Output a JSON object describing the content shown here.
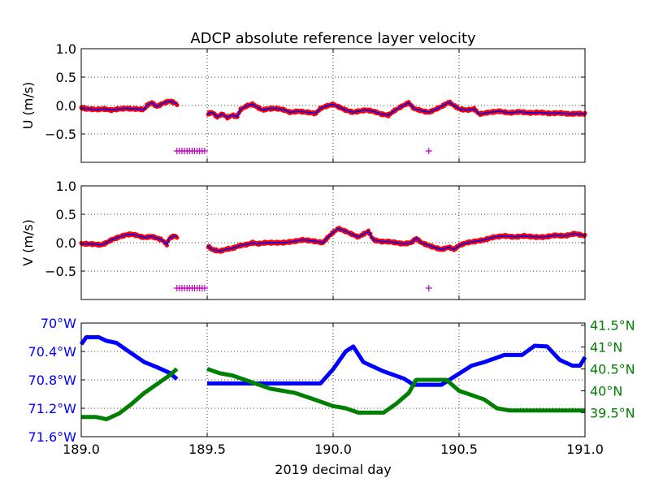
{
  "figure_title": "ADCP absolute reference layer velocity",
  "colors": {
    "red": "#ff0000",
    "blue": "#0000ff",
    "green": "#008000",
    "magenta": "#bf00bf",
    "grid": "#000000"
  },
  "chart_data": [
    {
      "type": "scatter",
      "panel": "u",
      "title": "ADCP absolute reference layer velocity",
      "xlabel": "",
      "ylabel": "U (m/s)",
      "xlim": [
        189.0,
        191.0
      ],
      "ylim": [
        -1.0,
        1.0
      ],
      "xticks": [
        189.0,
        189.5,
        190.0,
        190.5,
        191.0
      ],
      "yticks": [
        1.0,
        0.5,
        0.0,
        -0.5
      ],
      "ytick_labels": [
        "1.0",
        "0.5",
        "0.0",
        "−0.5"
      ],
      "grid": true,
      "gaps": [
        [
          189.38,
          189.5
        ]
      ],
      "series_points": [
        [
          189.0,
          -0.05
        ],
        [
          189.03,
          -0.06
        ],
        [
          189.06,
          -0.07
        ],
        [
          189.09,
          -0.06
        ],
        [
          189.12,
          -0.08
        ],
        [
          189.15,
          -0.06
        ],
        [
          189.18,
          -0.05
        ],
        [
          189.2,
          -0.06
        ],
        [
          189.22,
          -0.06
        ],
        [
          189.25,
          -0.07
        ],
        [
          189.26,
          0.0
        ],
        [
          189.28,
          0.05
        ],
        [
          189.3,
          -0.02
        ],
        [
          189.32,
          0.03
        ],
        [
          189.35,
          0.08
        ],
        [
          189.37,
          0.05
        ],
        [
          189.38,
          0.02
        ],
        [
          189.5,
          -0.15
        ],
        [
          189.52,
          -0.12
        ],
        [
          189.54,
          -0.2
        ],
        [
          189.56,
          -0.15
        ],
        [
          189.58,
          -0.21
        ],
        [
          189.6,
          -0.17
        ],
        [
          189.62,
          -0.2
        ],
        [
          189.63,
          -0.08
        ],
        [
          189.64,
          -0.05
        ],
        [
          189.66,
          0.0
        ],
        [
          189.68,
          0.02
        ],
        [
          189.7,
          -0.03
        ],
        [
          189.72,
          -0.08
        ],
        [
          189.74,
          -0.06
        ],
        [
          189.77,
          -0.05
        ],
        [
          189.8,
          -0.07
        ],
        [
          189.83,
          -0.12
        ],
        [
          189.86,
          -0.1
        ],
        [
          189.9,
          -0.12
        ],
        [
          189.93,
          -0.14
        ],
        [
          189.95,
          -0.05
        ],
        [
          189.98,
          0.0
        ],
        [
          190.0,
          0.02
        ],
        [
          190.02,
          -0.02
        ],
        [
          190.05,
          -0.08
        ],
        [
          190.08,
          -0.12
        ],
        [
          190.1,
          -0.1
        ],
        [
          190.13,
          -0.08
        ],
        [
          190.16,
          -0.1
        ],
        [
          190.19,
          -0.15
        ],
        [
          190.22,
          -0.17
        ],
        [
          190.24,
          -0.1
        ],
        [
          190.27,
          -0.02
        ],
        [
          190.3,
          0.05
        ],
        [
          190.32,
          -0.05
        ],
        [
          190.35,
          -0.09
        ],
        [
          190.38,
          -0.12
        ],
        [
          190.4,
          -0.08
        ],
        [
          190.43,
          -0.02
        ],
        [
          190.46,
          0.06
        ],
        [
          190.48,
          0.0
        ],
        [
          190.5,
          -0.06
        ],
        [
          190.53,
          -0.08
        ],
        [
          190.56,
          -0.06
        ],
        [
          190.58,
          -0.15
        ],
        [
          190.62,
          -0.12
        ],
        [
          190.66,
          -0.1
        ],
        [
          190.7,
          -0.13
        ],
        [
          190.74,
          -0.11
        ],
        [
          190.78,
          -0.13
        ],
        [
          190.82,
          -0.12
        ],
        [
          190.86,
          -0.14
        ],
        [
          190.9,
          -0.13
        ],
        [
          190.94,
          -0.15
        ],
        [
          190.97,
          -0.14
        ],
        [
          191.0,
          -0.15
        ]
      ],
      "flags": [
        [
          189.38,
          -0.8
        ],
        [
          189.39,
          -0.8
        ],
        [
          189.4,
          -0.8
        ],
        [
          189.41,
          -0.8
        ],
        [
          189.42,
          -0.8
        ],
        [
          189.43,
          -0.8
        ],
        [
          189.44,
          -0.8
        ],
        [
          189.45,
          -0.8
        ],
        [
          189.46,
          -0.8
        ],
        [
          189.47,
          -0.8
        ],
        [
          189.48,
          -0.8
        ],
        [
          189.49,
          -0.8
        ],
        [
          190.38,
          -0.8
        ]
      ]
    },
    {
      "type": "scatter",
      "panel": "v",
      "title": "",
      "xlabel": "",
      "ylabel": "V (m/s)",
      "xlim": [
        189.0,
        191.0
      ],
      "ylim": [
        -1.0,
        1.0
      ],
      "xticks": [
        189.0,
        189.5,
        190.0,
        190.5,
        191.0
      ],
      "yticks": [
        1.0,
        0.5,
        0.0,
        -0.5
      ],
      "ytick_labels": [
        "1.0",
        "0.5",
        "0.0",
        "−0.5"
      ],
      "grid": true,
      "gaps": [
        [
          189.38,
          189.5
        ]
      ],
      "series_points": [
        [
          189.0,
          -0.02
        ],
        [
          189.03,
          -0.02
        ],
        [
          189.06,
          -0.03
        ],
        [
          189.08,
          -0.04
        ],
        [
          189.1,
          0.0
        ],
        [
          189.12,
          0.05
        ],
        [
          189.15,
          0.1
        ],
        [
          189.18,
          0.14
        ],
        [
          189.2,
          0.15
        ],
        [
          189.22,
          0.13
        ],
        [
          189.25,
          0.09
        ],
        [
          189.28,
          0.11
        ],
        [
          189.3,
          0.08
        ],
        [
          189.32,
          0.05
        ],
        [
          189.34,
          -0.03
        ],
        [
          189.35,
          0.08
        ],
        [
          189.37,
          0.12
        ],
        [
          189.38,
          0.1
        ],
        [
          189.5,
          -0.05
        ],
        [
          189.52,
          -0.12
        ],
        [
          189.55,
          -0.15
        ],
        [
          189.58,
          -0.11
        ],
        [
          189.6,
          -0.1
        ],
        [
          189.63,
          -0.05
        ],
        [
          189.66,
          -0.03
        ],
        [
          189.68,
          0.0
        ],
        [
          189.7,
          -0.02
        ],
        [
          189.73,
          0.0
        ],
        [
          189.76,
          0.0
        ],
        [
          189.8,
          0.0
        ],
        [
          189.84,
          0.02
        ],
        [
          189.88,
          0.05
        ],
        [
          189.92,
          0.03
        ],
        [
          189.96,
          0.0
        ],
        [
          189.98,
          0.1
        ],
        [
          190.0,
          0.18
        ],
        [
          190.02,
          0.25
        ],
        [
          190.05,
          0.2
        ],
        [
          190.08,
          0.14
        ],
        [
          190.1,
          0.1
        ],
        [
          190.12,
          0.15
        ],
        [
          190.14,
          0.2
        ],
        [
          190.16,
          0.05
        ],
        [
          190.19,
          0.02
        ],
        [
          190.22,
          0.02
        ],
        [
          190.25,
          0.0
        ],
        [
          190.28,
          -0.02
        ],
        [
          190.31,
          0.0
        ],
        [
          190.33,
          0.08
        ],
        [
          190.35,
          0.0
        ],
        [
          190.38,
          -0.05
        ],
        [
          190.4,
          -0.08
        ],
        [
          190.43,
          -0.12
        ],
        [
          190.46,
          -0.08
        ],
        [
          190.48,
          -0.12
        ],
        [
          190.5,
          -0.05
        ],
        [
          190.53,
          0.0
        ],
        [
          190.56,
          0.02
        ],
        [
          190.6,
          0.05
        ],
        [
          190.64,
          0.1
        ],
        [
          190.68,
          0.12
        ],
        [
          190.72,
          0.1
        ],
        [
          190.76,
          0.12
        ],
        [
          190.8,
          0.1
        ],
        [
          190.84,
          0.1
        ],
        [
          190.88,
          0.13
        ],
        [
          190.92,
          0.12
        ],
        [
          190.96,
          0.16
        ],
        [
          191.0,
          0.12
        ]
      ],
      "flags": [
        [
          189.38,
          -0.8
        ],
        [
          189.39,
          -0.8
        ],
        [
          189.4,
          -0.8
        ],
        [
          189.41,
          -0.8
        ],
        [
          189.42,
          -0.8
        ],
        [
          189.43,
          -0.8
        ],
        [
          189.44,
          -0.8
        ],
        [
          189.45,
          -0.8
        ],
        [
          189.46,
          -0.8
        ],
        [
          189.47,
          -0.8
        ],
        [
          189.48,
          -0.8
        ],
        [
          189.49,
          -0.8
        ],
        [
          190.38,
          -0.8
        ]
      ]
    },
    {
      "type": "line",
      "panel": "position",
      "title": "",
      "xlabel": "2019 decimal day",
      "xlim": [
        189.0,
        191.0
      ],
      "xticks": [
        189.0,
        189.5,
        190.0,
        190.5,
        191.0
      ],
      "xtick_labels": [
        "189.0",
        "189.5",
        "190.0",
        "190.5",
        "191.0"
      ],
      "grid": true,
      "gaps": [
        [
          189.38,
          189.5
        ]
      ],
      "left_axis": {
        "ylabel": "",
        "ylim": [
          -71.6,
          -70.0
        ],
        "yticks": [
          -70.0,
          -70.4,
          -70.8,
          -71.2,
          -71.6
        ],
        "ytick_labels": [
          "70°W",
          "70.4°W",
          "70.8°W",
          "71.2°W",
          "71.6°W"
        ],
        "points": [
          [
            189.0,
            -70.3
          ],
          [
            189.02,
            -70.2
          ],
          [
            189.07,
            -70.2
          ],
          [
            189.1,
            -70.25
          ],
          [
            189.14,
            -70.28
          ],
          [
            189.18,
            -70.38
          ],
          [
            189.25,
            -70.55
          ],
          [
            189.3,
            -70.62
          ],
          [
            189.35,
            -70.7
          ],
          [
            189.38,
            -70.79
          ],
          [
            189.5,
            -70.85
          ],
          [
            189.95,
            -70.85
          ],
          [
            190.0,
            -70.65
          ],
          [
            190.05,
            -70.4
          ],
          [
            190.08,
            -70.33
          ],
          [
            190.12,
            -70.55
          ],
          [
            190.2,
            -70.68
          ],
          [
            190.28,
            -70.78
          ],
          [
            190.32,
            -70.87
          ],
          [
            190.43,
            -70.87
          ],
          [
            190.55,
            -70.6
          ],
          [
            190.6,
            -70.55
          ],
          [
            190.68,
            -70.45
          ],
          [
            190.75,
            -70.45
          ],
          [
            190.8,
            -70.32
          ],
          [
            190.85,
            -70.33
          ],
          [
            190.9,
            -70.52
          ],
          [
            190.95,
            -70.6
          ],
          [
            190.98,
            -70.6
          ],
          [
            191.0,
            -70.48
          ]
        ]
      },
      "right_axis": {
        "ylabel": "",
        "ylim": [
          38.95,
          41.55
        ],
        "yticks": [
          41.5,
          41.0,
          40.5,
          40.0,
          39.5
        ],
        "ytick_labels": [
          "41.5°N",
          "41°N",
          "40.5°N",
          "40°N",
          "39.5°N"
        ],
        "points": [
          [
            189.0,
            39.4
          ],
          [
            189.06,
            39.4
          ],
          [
            189.1,
            39.35
          ],
          [
            189.15,
            39.48
          ],
          [
            189.2,
            39.7
          ],
          [
            189.25,
            39.95
          ],
          [
            189.3,
            40.15
          ],
          [
            189.35,
            40.35
          ],
          [
            189.38,
            40.5
          ],
          [
            189.5,
            40.5
          ],
          [
            189.55,
            40.4
          ],
          [
            189.6,
            40.35
          ],
          [
            189.65,
            40.25
          ],
          [
            189.7,
            40.15
          ],
          [
            189.75,
            40.05
          ],
          [
            189.8,
            40.0
          ],
          [
            189.85,
            39.95
          ],
          [
            189.9,
            39.85
          ],
          [
            189.95,
            39.75
          ],
          [
            190.0,
            39.65
          ],
          [
            190.05,
            39.6
          ],
          [
            190.1,
            39.5
          ],
          [
            190.2,
            39.5
          ],
          [
            190.25,
            39.7
          ],
          [
            190.3,
            39.95
          ],
          [
            190.33,
            40.25
          ],
          [
            190.45,
            40.25
          ],
          [
            190.5,
            40.0
          ],
          [
            190.55,
            39.9
          ],
          [
            190.6,
            39.8
          ],
          [
            190.65,
            39.6
          ],
          [
            190.7,
            39.55
          ],
          [
            191.0,
            39.55
          ]
        ]
      }
    }
  ]
}
